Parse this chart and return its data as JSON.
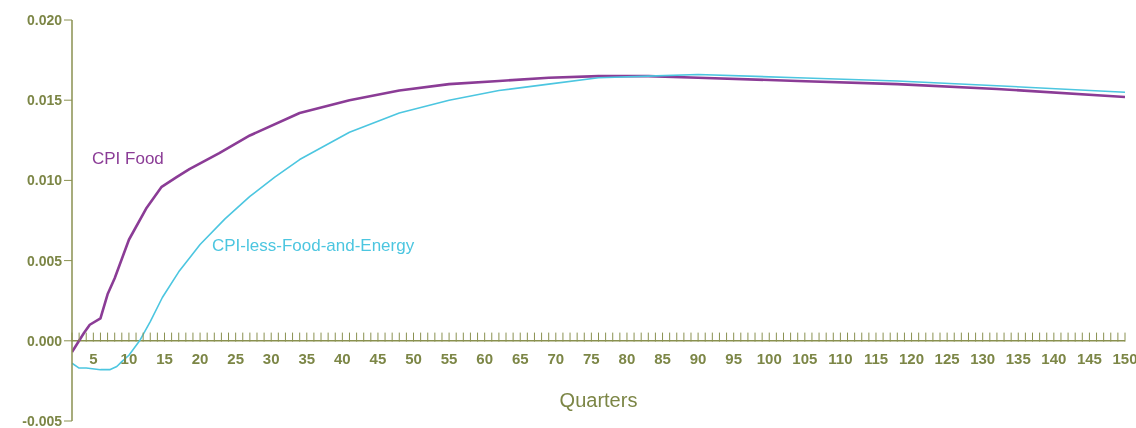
{
  "chart_data": {
    "type": "line",
    "xlabel": "Quarters",
    "xlim": [
      2,
      150
    ],
    "xticks": [
      {
        "value": 2,
        "label": null
      },
      {
        "value": 3,
        "label": null
      },
      {
        "value": 4,
        "label": null
      },
      5,
      {
        "value": 6,
        "label": null
      },
      {
        "value": 7,
        "label": null
      },
      {
        "value": 8,
        "label": null
      },
      {
        "value": 9,
        "label": null
      },
      10,
      {
        "value": 11,
        "label": null
      },
      {
        "value": 12,
        "label": null
      },
      {
        "value": 13,
        "label": null
      },
      {
        "value": 14,
        "label": null
      },
      15,
      {
        "value": 16,
        "label": null
      },
      {
        "value": 17,
        "label": null
      },
      {
        "value": 18,
        "label": null
      },
      {
        "value": 19,
        "label": null
      },
      20,
      {
        "value": 21,
        "label": null
      },
      {
        "value": 22,
        "label": null
      },
      {
        "value": 23,
        "label": null
      },
      {
        "value": 24,
        "label": null
      },
      25,
      {
        "value": 26,
        "label": null
      },
      {
        "value": 27,
        "label": null
      },
      {
        "value": 28,
        "label": null
      },
      {
        "value": 29,
        "label": null
      },
      30,
      {
        "value": 31,
        "label": null
      },
      {
        "value": 32,
        "label": null
      },
      {
        "value": 33,
        "label": null
      },
      {
        "value": 34,
        "label": null
      },
      35,
      {
        "value": 36,
        "label": null
      },
      {
        "value": 37,
        "label": null
      },
      {
        "value": 38,
        "label": null
      },
      {
        "value": 39,
        "label": null
      },
      40,
      {
        "value": 41,
        "label": null
      },
      {
        "value": 42,
        "label": null
      },
      {
        "value": 43,
        "label": null
      },
      {
        "value": 44,
        "label": null
      },
      45,
      {
        "value": 46,
        "label": null
      },
      {
        "value": 47,
        "label": null
      },
      {
        "value": 48,
        "label": null
      },
      {
        "value": 49,
        "label": null
      },
      50,
      {
        "value": 51,
        "label": null
      },
      {
        "value": 52,
        "label": null
      },
      {
        "value": 53,
        "label": null
      },
      {
        "value": 54,
        "label": null
      },
      55,
      {
        "value": 56,
        "label": null
      },
      {
        "value": 57,
        "label": null
      },
      {
        "value": 58,
        "label": null
      },
      {
        "value": 59,
        "label": null
      },
      60,
      {
        "value": 61,
        "label": null
      },
      {
        "value": 62,
        "label": null
      },
      {
        "value": 63,
        "label": null
      },
      {
        "value": 64,
        "label": null
      },
      65,
      {
        "value": 66,
        "label": null
      },
      {
        "value": 67,
        "label": null
      },
      {
        "value": 68,
        "label": null
      },
      {
        "value": 69,
        "label": null
      },
      70,
      {
        "value": 71,
        "label": null
      },
      {
        "value": 72,
        "label": null
      },
      {
        "value": 73,
        "label": null
      },
      {
        "value": 74,
        "label": null
      },
      75,
      {
        "value": 76,
        "label": null
      },
      {
        "value": 77,
        "label": null
      },
      {
        "value": 78,
        "label": null
      },
      {
        "value": 79,
        "label": null
      },
      80,
      {
        "value": 81,
        "label": null
      },
      {
        "value": 82,
        "label": null
      },
      {
        "value": 83,
        "label": null
      },
      {
        "value": 84,
        "label": null
      },
      85,
      {
        "value": 86,
        "label": null
      },
      {
        "value": 87,
        "label": null
      },
      {
        "value": 88,
        "label": null
      },
      {
        "value": 89,
        "label": null
      },
      90,
      {
        "value": 91,
        "label": null
      },
      {
        "value": 92,
        "label": null
      },
      {
        "value": 93,
        "label": null
      },
      {
        "value": 94,
        "label": null
      },
      95,
      {
        "value": 96,
        "label": null
      },
      {
        "value": 97,
        "label": null
      },
      {
        "value": 98,
        "label": null
      },
      {
        "value": 99,
        "label": null
      },
      100,
      {
        "value": 101,
        "label": null
      },
      {
        "value": 102,
        "label": null
      },
      {
        "value": 103,
        "label": null
      },
      {
        "value": 104,
        "label": null
      },
      105,
      {
        "value": 106,
        "label": null
      },
      {
        "value": 107,
        "label": null
      },
      {
        "value": 108,
        "label": null
      },
      {
        "value": 109,
        "label": null
      },
      110,
      {
        "value": 111,
        "label": null
      },
      {
        "value": 112,
        "label": null
      },
      {
        "value": 113,
        "label": null
      },
      {
        "value": 114,
        "label": null
      },
      115,
      {
        "value": 116,
        "label": null
      },
      {
        "value": 117,
        "label": null
      },
      {
        "value": 118,
        "label": null
      },
      {
        "value": 119,
        "label": null
      },
      120,
      {
        "value": 121,
        "label": null
      },
      {
        "value": 122,
        "label": null
      },
      {
        "value": 123,
        "label": null
      },
      {
        "value": 124,
        "label": null
      },
      125,
      {
        "value": 126,
        "label": null
      },
      {
        "value": 127,
        "label": null
      },
      {
        "value": 128,
        "label": null
      },
      {
        "value": 129,
        "label": null
      },
      130,
      {
        "value": 131,
        "label": null
      },
      {
        "value": 132,
        "label": null
      },
      {
        "value": 133,
        "label": null
      },
      {
        "value": 134,
        "label": null
      },
      135,
      {
        "value": 136,
        "label": null
      },
      {
        "value": 137,
        "label": null
      },
      {
        "value": 138,
        "label": null
      },
      {
        "value": 139,
        "label": null
      },
      140,
      {
        "value": 141,
        "label": null
      },
      {
        "value": 142,
        "label": null
      },
      {
        "value": 143,
        "label": null
      },
      {
        "value": 144,
        "label": null
      },
      145,
      {
        "value": 146,
        "label": null
      },
      {
        "value": 147,
        "label": null
      },
      {
        "value": 148,
        "label": null
      },
      {
        "value": 149,
        "label": null
      },
      150
    ],
    "ylim": [
      -0.005,
      0.02
    ],
    "yticks": [
      {
        "value": -0.005,
        "label": "-0.005"
      },
      {
        "value": 0,
        "label": "0.000"
      },
      {
        "value": 0.005,
        "label": "0.005"
      },
      {
        "value": 0.01,
        "label": "0.010"
      },
      {
        "value": 0.015,
        "label": "0.015"
      },
      {
        "value": 0.02,
        "label": "0.020"
      }
    ],
    "series": [
      {
        "name": "CPI Food",
        "color": "#8b3c96",
        "x": [
          2,
          3.7,
          4.5,
          6,
          7,
          8,
          10,
          12.5,
          14.6,
          16.7,
          18.5,
          22.7,
          27,
          34,
          41,
          48,
          55,
          62,
          69,
          76,
          83,
          90,
          104,
          118,
          132,
          150
        ],
        "values": [
          -0.0007,
          0.0005,
          0.001,
          0.0014,
          0.0029,
          0.0039,
          0.0063,
          0.0083,
          0.0096,
          0.0102,
          0.0107,
          0.0117,
          0.0128,
          0.0142,
          0.015,
          0.0156,
          0.016,
          0.0162,
          0.0164,
          0.0165,
          0.0165,
          0.0164,
          0.0162,
          0.016,
          0.0157,
          0.0152
        ]
      },
      {
        "name": "CPI-less-Food-and-Energy",
        "color": "#4cc6e0",
        "x": [
          2,
          3,
          4,
          6,
          7.3,
          8.3,
          9,
          10,
          11.5,
          13,
          14.7,
          17,
          20,
          23.5,
          27,
          30.5,
          34,
          41,
          48,
          55,
          62,
          69,
          76,
          83,
          90,
          104,
          118,
          132,
          150
        ],
        "values": [
          -0.0014,
          -0.0017,
          -0.0017,
          -0.0018,
          -0.0018,
          -0.0016,
          -0.0013,
          -0.0009,
          0,
          0.0012,
          0.0027,
          0.0043,
          0.006,
          0.0076,
          0.009,
          0.0102,
          0.0113,
          0.013,
          0.0142,
          0.015,
          0.0156,
          0.016,
          0.0164,
          0.0165,
          0.0166,
          0.0164,
          0.0162,
          0.0159,
          0.0155
        ]
      }
    ]
  }
}
